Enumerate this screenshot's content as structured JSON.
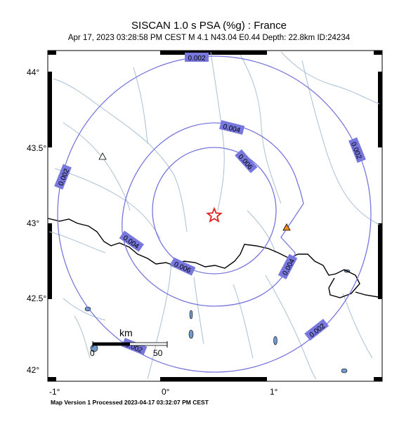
{
  "header": {
    "title": "SISCAN 1.0 s PSA (%g) : France",
    "subtitle": "Apr 17, 2023 03:28:58 PM CEST   M 4.1   N43.04 E0.44   Depth: 22.8km   ID:24234"
  },
  "axes": {
    "lat_ticks": [
      "44°",
      "43.5°",
      "43°",
      "42.5°",
      "42°"
    ],
    "lon_ticks": [
      "-1°",
      "0°",
      "1°"
    ]
  },
  "contours": {
    "labels": [
      "0.002",
      "0.002",
      "0.002",
      "0.002",
      "0.002",
      "0.004",
      "0.004",
      "0.004",
      "0.006",
      "0.006"
    ],
    "color": "#7777dd"
  },
  "epicenter": {
    "lat": 43.04,
    "lon": 0.44,
    "color": "#e0201e",
    "icon": "star-icon"
  },
  "stations": [
    {
      "icon": "triangle-icon",
      "fill": "#ffffff"
    },
    {
      "icon": "triangle-icon",
      "fill": "#f08a1c"
    }
  ],
  "scale_bar": {
    "unit": "km",
    "start": "0",
    "end": "50"
  },
  "footer": {
    "text": "Map Version 1 Processed 2023-04-17 03:32:07 PM CEST"
  }
}
